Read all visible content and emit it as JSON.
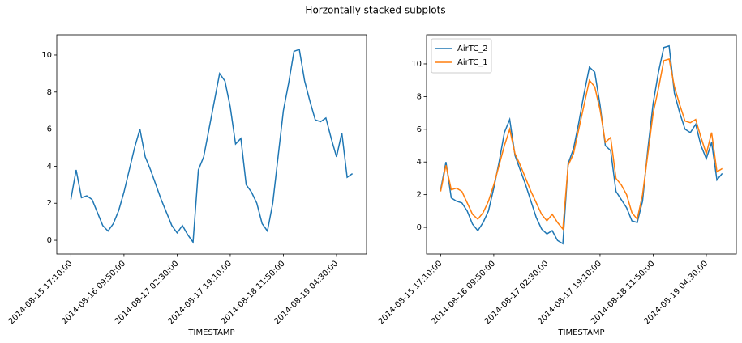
{
  "title": "Horzontally stacked subplots",
  "chart_data": [
    {
      "type": "line",
      "xlabel": "TIMESTAMP",
      "x": [
        "2014-08-15 17:10:00",
        "2014-08-15 18:50:00",
        "2014-08-15 20:30:00",
        "2014-08-15 22:10:00",
        "2014-08-15 23:50:00",
        "2014-08-16 01:30:00",
        "2014-08-16 03:10:00",
        "2014-08-16 04:50:00",
        "2014-08-16 06:30:00",
        "2014-08-16 08:10:00",
        "2014-08-16 09:50:00",
        "2014-08-16 11:30:00",
        "2014-08-16 13:10:00",
        "2014-08-16 14:50:00",
        "2014-08-16 16:30:00",
        "2014-08-16 18:10:00",
        "2014-08-16 19:50:00",
        "2014-08-16 21:30:00",
        "2014-08-16 23:10:00",
        "2014-08-17 00:50:00",
        "2014-08-17 02:30:00",
        "2014-08-17 04:10:00",
        "2014-08-17 05:50:00",
        "2014-08-17 07:30:00",
        "2014-08-17 09:10:00",
        "2014-08-17 10:50:00",
        "2014-08-17 12:30:00",
        "2014-08-17 14:10:00",
        "2014-08-17 15:50:00",
        "2014-08-17 17:30:00",
        "2014-08-17 19:10:00",
        "2014-08-17 20:50:00",
        "2014-08-17 22:30:00",
        "2014-08-18 00:10:00",
        "2014-08-18 01:50:00",
        "2014-08-18 03:30:00",
        "2014-08-18 05:10:00",
        "2014-08-18 06:50:00",
        "2014-08-18 08:30:00",
        "2014-08-18 10:10:00",
        "2014-08-18 11:50:00",
        "2014-08-18 13:30:00",
        "2014-08-18 15:10:00",
        "2014-08-18 16:50:00",
        "2014-08-18 18:30:00",
        "2014-08-18 20:10:00",
        "2014-08-18 21:50:00",
        "2014-08-18 23:30:00",
        "2014-08-19 01:10:00",
        "2014-08-19 02:50:00",
        "2014-08-19 04:30:00",
        "2014-08-19 06:10:00",
        "2014-08-19 07:50:00",
        "2014-08-19 09:30:00"
      ],
      "values": [
        2.2,
        3.8,
        2.3,
        2.4,
        2.2,
        1.5,
        0.8,
        0.5,
        0.9,
        1.6,
        2.6,
        3.8,
        5.0,
        6.0,
        4.5,
        3.8,
        3.0,
        2.2,
        1.5,
        0.8,
        0.4,
        0.8,
        0.3,
        -0.1,
        3.8,
        4.5,
        6.0,
        7.5,
        9.0,
        8.6,
        7.2,
        5.2,
        5.5,
        3.0,
        2.6,
        2.0,
        0.9,
        0.5,
        2.0,
        4.5,
        7.0,
        8.5,
        10.2,
        10.3,
        8.6,
        7.5,
        6.5,
        6.4,
        6.6,
        5.5,
        4.5,
        5.8,
        3.4,
        3.6
      ],
      "color": "#1f77b4",
      "xlim": [
        "2014-08-15 12:45:00",
        "2014-08-19 13:55:00"
      ],
      "xticks": [
        "2014-08-15 17:10:00",
        "2014-08-16 09:50:00",
        "2014-08-17 02:30:00",
        "2014-08-17 19:10:00",
        "2014-08-18 11:50:00",
        "2014-08-19 04:30:00"
      ],
      "ylim": [
        -0.74,
        11.09
      ],
      "yticks": [
        0,
        2,
        4,
        6,
        8,
        10
      ]
    },
    {
      "type": "line",
      "xlabel": "TIMESTAMP",
      "x": [
        "2014-08-15 17:10:00",
        "2014-08-15 18:50:00",
        "2014-08-15 20:30:00",
        "2014-08-15 22:10:00",
        "2014-08-15 23:50:00",
        "2014-08-16 01:30:00",
        "2014-08-16 03:10:00",
        "2014-08-16 04:50:00",
        "2014-08-16 06:30:00",
        "2014-08-16 08:10:00",
        "2014-08-16 09:50:00",
        "2014-08-16 11:30:00",
        "2014-08-16 13:10:00",
        "2014-08-16 14:50:00",
        "2014-08-16 16:30:00",
        "2014-08-16 18:10:00",
        "2014-08-16 19:50:00",
        "2014-08-16 21:30:00",
        "2014-08-16 23:10:00",
        "2014-08-17 00:50:00",
        "2014-08-17 02:30:00",
        "2014-08-17 04:10:00",
        "2014-08-17 05:50:00",
        "2014-08-17 07:30:00",
        "2014-08-17 09:10:00",
        "2014-08-17 10:50:00",
        "2014-08-17 12:30:00",
        "2014-08-17 14:10:00",
        "2014-08-17 15:50:00",
        "2014-08-17 17:30:00",
        "2014-08-17 19:10:00",
        "2014-08-17 20:50:00",
        "2014-08-17 22:30:00",
        "2014-08-18 00:10:00",
        "2014-08-18 01:50:00",
        "2014-08-18 03:30:00",
        "2014-08-18 05:10:00",
        "2014-08-18 06:50:00",
        "2014-08-18 08:30:00",
        "2014-08-18 10:10:00",
        "2014-08-18 11:50:00",
        "2014-08-18 13:30:00",
        "2014-08-18 15:10:00",
        "2014-08-18 16:50:00",
        "2014-08-18 18:30:00",
        "2014-08-18 20:10:00",
        "2014-08-18 21:50:00",
        "2014-08-18 23:30:00",
        "2014-08-19 01:10:00",
        "2014-08-19 02:50:00",
        "2014-08-19 04:30:00",
        "2014-08-19 06:10:00",
        "2014-08-19 07:50:00",
        "2014-08-19 09:30:00"
      ],
      "series": [
        {
          "name": "AirTC_2",
          "color": "#1f77b4",
          "values": [
            2.3,
            4.0,
            1.8,
            1.6,
            1.5,
            1.0,
            0.2,
            -0.2,
            0.3,
            1.0,
            2.4,
            4.0,
            5.8,
            6.6,
            4.4,
            3.5,
            2.6,
            1.6,
            0.6,
            -0.1,
            -0.4,
            -0.2,
            -0.8,
            -1.0,
            3.9,
            4.8,
            6.4,
            8.2,
            9.8,
            9.5,
            7.5,
            5.0,
            4.7,
            2.2,
            1.7,
            1.2,
            0.4,
            0.3,
            1.6,
            4.8,
            7.6,
            9.5,
            11.0,
            11.1,
            8.2,
            7.0,
            6.0,
            5.8,
            6.3,
            5.0,
            4.2,
            5.2,
            2.9,
            3.3
          ]
        },
        {
          "name": "AirTC_1",
          "color": "#ff7f0e",
          "values": [
            2.2,
            3.8,
            2.3,
            2.4,
            2.2,
            1.5,
            0.8,
            0.5,
            0.9,
            1.6,
            2.6,
            3.8,
            5.0,
            6.0,
            4.5,
            3.8,
            3.0,
            2.2,
            1.5,
            0.8,
            0.4,
            0.8,
            0.3,
            -0.1,
            3.8,
            4.5,
            6.0,
            7.5,
            9.0,
            8.6,
            7.2,
            5.2,
            5.5,
            3.0,
            2.6,
            2.0,
            0.9,
            0.5,
            2.0,
            4.5,
            7.0,
            8.5,
            10.2,
            10.3,
            8.6,
            7.5,
            6.5,
            6.4,
            6.6,
            5.5,
            4.5,
            5.8,
            3.4,
            3.6
          ]
        }
      ],
      "legend": "upper left",
      "xlim": [
        "2014-08-15 12:45:00",
        "2014-08-19 13:55:00"
      ],
      "xticks": [
        "2014-08-15 17:10:00",
        "2014-08-16 09:50:00",
        "2014-08-17 02:30:00",
        "2014-08-17 19:10:00",
        "2014-08-18 11:50:00",
        "2014-08-19 04:30:00"
      ],
      "ylim": [
        -1.63,
        11.78
      ],
      "yticks": [
        0,
        2,
        4,
        6,
        8,
        10
      ]
    }
  ]
}
